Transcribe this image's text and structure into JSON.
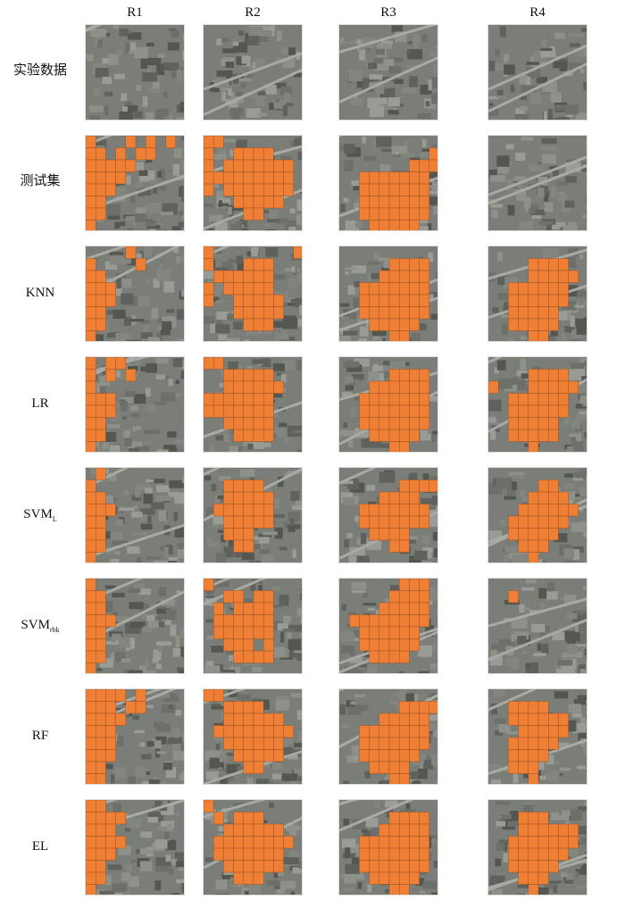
{
  "columns": [
    "R1",
    "R2",
    "R3",
    "R4"
  ],
  "rows": [
    {
      "label": "实验数据",
      "sub": ""
    },
    {
      "label": "测试集",
      "sub": ""
    },
    {
      "label": "KNN",
      "sub": ""
    },
    {
      "label": "LR",
      "sub": ""
    },
    {
      "label": "SVM",
      "sub": "L"
    },
    {
      "label": "SVM",
      "sub": "rbk"
    },
    {
      "label": "RF",
      "sub": ""
    },
    {
      "label": "EL",
      "sub": ""
    }
  ],
  "colors": {
    "overlay": "#f07f36",
    "imagery_base": "#7b7e78",
    "road": "#a9aaa3",
    "grid_line": "#8a4a1f"
  },
  "overlay_masks": [
    [
      "",
      "",
      "",
      ""
    ],
    [
      "1000101010|1101011000|1111100000|1111000000|1110000000|1100000000|1100000000|1000000000",
      "1100000000|1001111000|1011111110|1111111110|1011111110|0001111100|0000110000|0000000000",
      "0000000000|0000000001|0000000111|0011111110|0011111110|0011111110|0011111110|0001111100",
      "0000000000|0000000000|0000000000|0000000000|0000000000|0000000000|0000000000|0000000000"
    ],
    [
      "0000100000|1000010000|1100000000|1110000000|1110000000|1100000000|1100000000|1000000000",
      "1000000001|1000111000|0111111000|1011111000|1001111100|0001111100|0000111000|0000000000",
      "0000000000|0000011110|0000111110|0011111110|0011111110|0011111110|0001111100|0000011000",
      "0000000000|0000111100|0000111110|0011111100|0011111100|0011111000|0011111000|0000110000"
    ],
    [
      "1011000000|1010100000|1000000000|1110000000|1110000000|1100000000|1100000000|1000000000",
      "1100000000|0011111000|0011111100|1111111000|1111111000|0011111000|0001111000|0000000000",
      "0000000000|0000011110|0001111110|0011111110|0011111110|0011111110|0001111100|0000011000",
      "0000000000|0000111100|1000111110|0011111100|0011111100|0011111000|0011111000|0000100000"
    ],
    [
      "0100000000|1000000000|1100000000|1110000000|1100000000|1100000000|1100000000|1000000000",
      "0000000000|0011110000|0011111000|0111111000|0011111000|0011100000|0001100000|0000000000",
      "0000000000|0000001111|0000111100|0011111110|0011111110|0001111000|0000011000|0000000000",
      "0000000000|0000011000|0000111100|0001111110|0011111100|0011111000|0001110000|0000100000"
    ],
    [
      "1000000000|1100000000|1100000000|1110000000|1100000000|1100000000|1100000000|1000000000",
      "1000000000|0011011000|0101111000|0111111000|0111111000|0011101000|0001111000|0000000000",
      "0000001110|0000011110|0000111110|0111111110|0011111100|0011111100|0001111000|0000000000",
      "0000000000|0010000000|0000000000|0000000000|0000000000|0000000000|0000000000|0000000000"
    ],
    [
      "1111010000|1110110000|1111000000|1110000000|1110000000|1110000000|1100000000|1100000000",
      "1100000000|0011110000|0011111100|0111111110|0011111100|0001111100|0000110000|0000000000",
      "0000000000|0000001111|0000111110|0011111110|0011111110|0011111100|0001111000|0000011000",
      "0000000000|0011110000|0011111100|0001111100|0011111000|0011110000|0011100000|0000100000"
    ],
    [
      "1100000000|1111000000|1110000000|1111000000|1110000000|1100000000|1100000000|1000000000",
      "1000000000|0101110000|0011111100|0111111110|0111111100|0011111100|0001110000|0000000000",
      "0000000000|0000011110|0000111110|0011111110|0011111110|0011111110|0001111100|0000011000",
      "0000000000|0001110000|0001111110|0011111110|0011111100|0011111000|0001110000|0000100000"
    ]
  ]
}
